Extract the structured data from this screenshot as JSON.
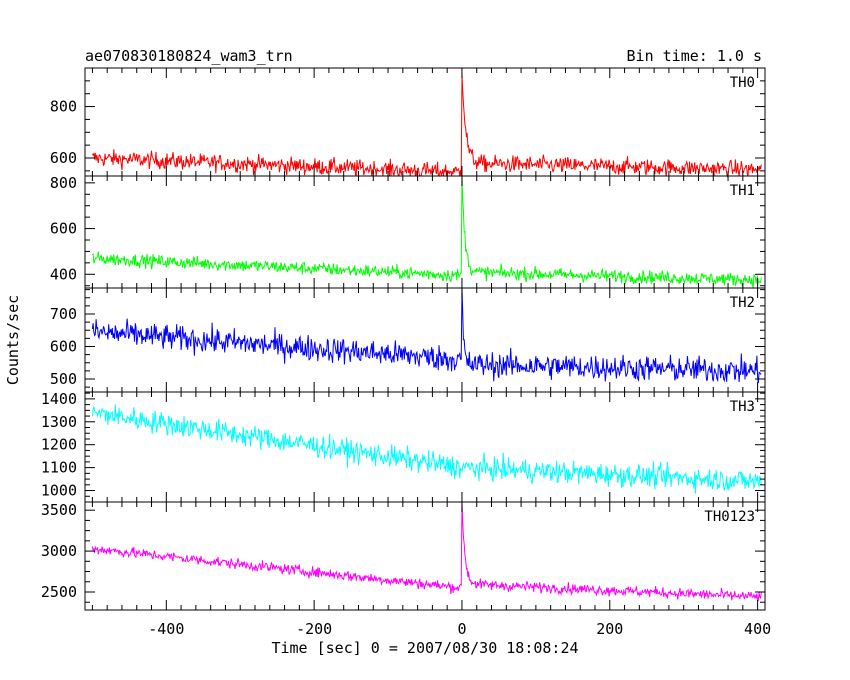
{
  "header": {
    "title": "ae070830180824_wam3_trn",
    "bin_time": "Bin time: 1.0 s"
  },
  "chart_data": {
    "type": "line",
    "title": "ae070830180824_wam3_trn",
    "subtitle": "Bin time: 1.0 s",
    "xlabel": "Time [sec] 0 = 2007/08/30 18:08:24",
    "ylabel": "Counts/sec",
    "xlim": [
      -510,
      410
    ],
    "xticks": [
      -400,
      -200,
      0,
      200,
      400
    ],
    "grid": false,
    "panels": [
      {
        "name": "TH0",
        "color": "#ff0000",
        "ylim": [
          530,
          950
        ],
        "yticks": [
          600,
          800
        ],
        "start_level": 600,
        "end_level": 555,
        "pre_burst_level": 545,
        "noise": 23,
        "peak": 950,
        "post_level": 580,
        "decay_s": 5,
        "key_points": [
          [
            -500,
            600
          ],
          [
            -200,
            565
          ],
          [
            0,
            545
          ],
          [
            2,
            950
          ],
          [
            20,
            580
          ],
          [
            400,
            555
          ]
        ]
      },
      {
        "name": "TH1",
        "color": "#00ff00",
        "ylim": [
          340,
          830
        ],
        "yticks": [
          400,
          600,
          800
        ],
        "start_level": 470,
        "end_level": 375,
        "pre_burst_level": 395,
        "noise": 20,
        "peak": 830,
        "post_level": 410,
        "decay_s": 4,
        "key_points": [
          [
            -500,
            470
          ],
          [
            -200,
            420
          ],
          [
            0,
            395
          ],
          [
            2,
            830
          ],
          [
            20,
            410
          ],
          [
            400,
            375
          ]
        ]
      },
      {
        "name": "TH2",
        "color": "#0000ff",
        "ylim": [
          460,
          780
        ],
        "yticks": [
          500,
          600,
          700
        ],
        "start_level": 645,
        "end_level": 525,
        "pre_burst_level": 560,
        "noise": 28,
        "peak": 780,
        "post_level": 545,
        "decay_s": 2,
        "key_points": [
          [
            -500,
            645
          ],
          [
            -200,
            590
          ],
          [
            0,
            560
          ],
          [
            2,
            780
          ],
          [
            20,
            545
          ],
          [
            400,
            525
          ]
        ]
      },
      {
        "name": "TH3",
        "color": "#00ffff",
        "ylim": [
          950,
          1430
        ],
        "yticks": [
          1000,
          1100,
          1200,
          1300,
          1400
        ],
        "start_level": 1340,
        "end_level": 1040,
        "pre_burst_level": 1100,
        "noise": 35,
        "peak": 1100,
        "post_level": 1100,
        "decay_s": 1,
        "key_points": [
          [
            -500,
            1340
          ],
          [
            -200,
            1160
          ],
          [
            0,
            1100
          ],
          [
            400,
            1040
          ]
        ]
      },
      {
        "name": "TH0123",
        "color": "#ff00ff",
        "ylim": [
          2280,
          3600
        ],
        "yticks": [
          2500,
          3000,
          3500
        ],
        "start_level": 3030,
        "end_level": 2440,
        "pre_burst_level": 2550,
        "noise": 45,
        "peak": 3600,
        "post_level": 2600,
        "decay_s": 4,
        "key_points": [
          [
            -500,
            3030
          ],
          [
            -200,
            2700
          ],
          [
            0,
            2550
          ],
          [
            2,
            3600
          ],
          [
            20,
            2600
          ],
          [
            400,
            2440
          ]
        ]
      }
    ]
  }
}
